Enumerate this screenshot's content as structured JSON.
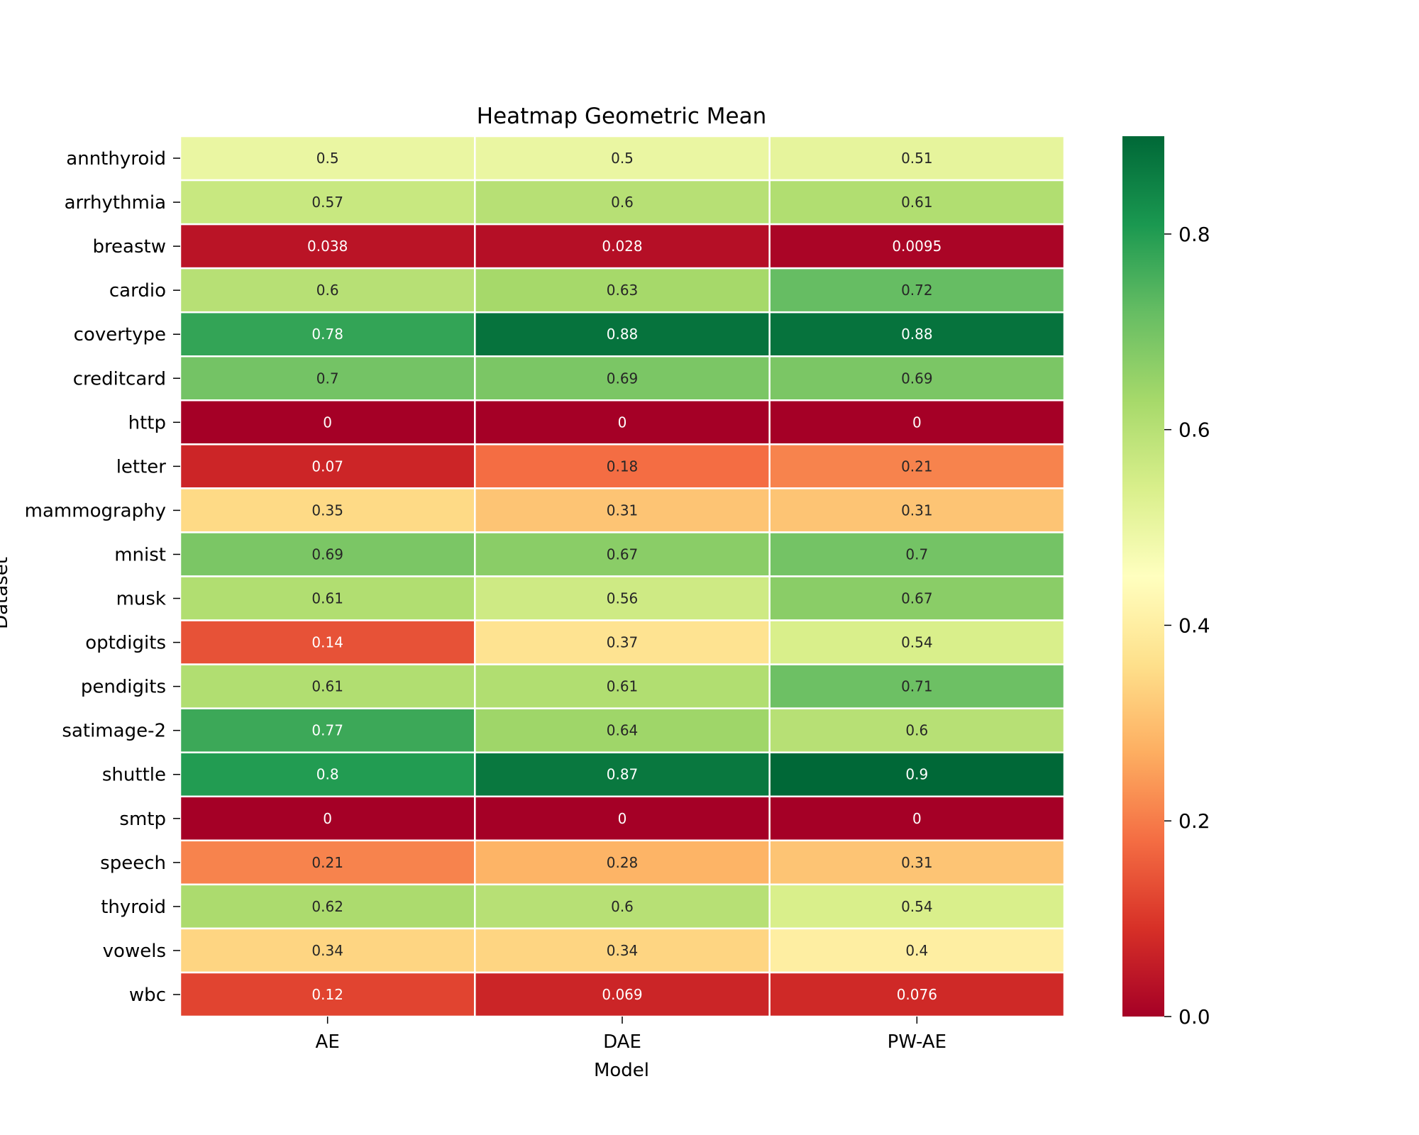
{
  "chart_data": {
    "type": "heatmap",
    "title": "Heatmap Geometric Mean",
    "xlabel": "Model",
    "ylabel": "Dataset",
    "x_categories": [
      "AE",
      "DAE",
      "PW-AE"
    ],
    "y_categories": [
      "annthyroid",
      "arrhythmia",
      "breastw",
      "cardio",
      "covertype",
      "creditcard",
      "http",
      "letter",
      "mammography",
      "mnist",
      "musk",
      "optdigits",
      "pendigits",
      "satimage-2",
      "shuttle",
      "smtp",
      "speech",
      "thyroid",
      "vowels",
      "wbc"
    ],
    "values": [
      [
        0.5,
        0.5,
        0.51
      ],
      [
        0.57,
        0.6,
        0.61
      ],
      [
        0.038,
        0.028,
        0.0095
      ],
      [
        0.6,
        0.63,
        0.72
      ],
      [
        0.78,
        0.88,
        0.88
      ],
      [
        0.7,
        0.69,
        0.69
      ],
      [
        0,
        0,
        0
      ],
      [
        0.07,
        0.18,
        0.21
      ],
      [
        0.35,
        0.31,
        0.31
      ],
      [
        0.69,
        0.67,
        0.7
      ],
      [
        0.61,
        0.56,
        0.67
      ],
      [
        0.14,
        0.37,
        0.54
      ],
      [
        0.61,
        0.61,
        0.71
      ],
      [
        0.77,
        0.64,
        0.6
      ],
      [
        0.8,
        0.87,
        0.9
      ],
      [
        0,
        0,
        0
      ],
      [
        0.21,
        0.28,
        0.31
      ],
      [
        0.62,
        0.6,
        0.54
      ],
      [
        0.34,
        0.34,
        0.4
      ],
      [
        0.12,
        0.069,
        0.076
      ]
    ],
    "colormap": "RdYlGn",
    "vmin": 0.0,
    "vmax": 0.9,
    "colorbar_ticks": [
      "0.0",
      "0.2",
      "0.4",
      "0.6",
      "0.8"
    ],
    "colors": {
      "cell_border": "#ffffff",
      "text_dark": "#262626",
      "text_light": "#ffffff"
    }
  }
}
